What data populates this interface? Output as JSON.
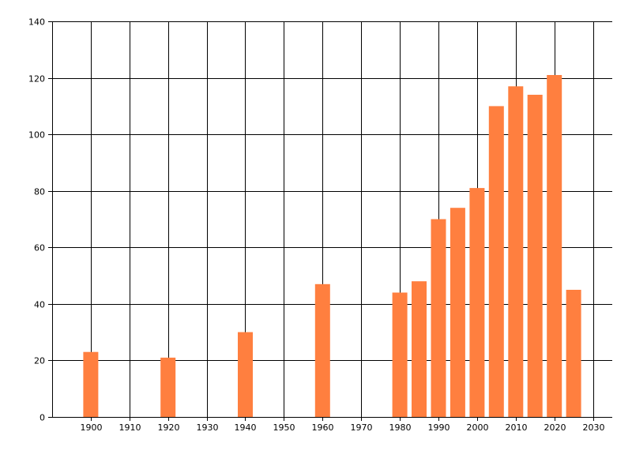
{
  "chart_data": {
    "type": "bar",
    "title": "",
    "xlabel": "",
    "ylabel": "",
    "x_ticks": [
      1900,
      1910,
      1920,
      1930,
      1940,
      1950,
      1960,
      1970,
      1980,
      1990,
      2000,
      2010,
      2020,
      2030
    ],
    "y_ticks": [
      0,
      20,
      40,
      60,
      80,
      100,
      120,
      140
    ],
    "xlim": [
      1890,
      2035
    ],
    "ylim": [
      0,
      140
    ],
    "grid": true,
    "bar_color": "#FF7F3F",
    "x": [
      1900,
      1920,
      1940,
      1960,
      1980,
      1985,
      1990,
      1995,
      2000,
      2005,
      2010,
      2015,
      2020,
      2025
    ],
    "values": [
      23,
      21,
      30,
      47,
      44,
      48,
      70,
      74,
      81,
      110,
      117,
      114,
      121,
      45
    ]
  }
}
